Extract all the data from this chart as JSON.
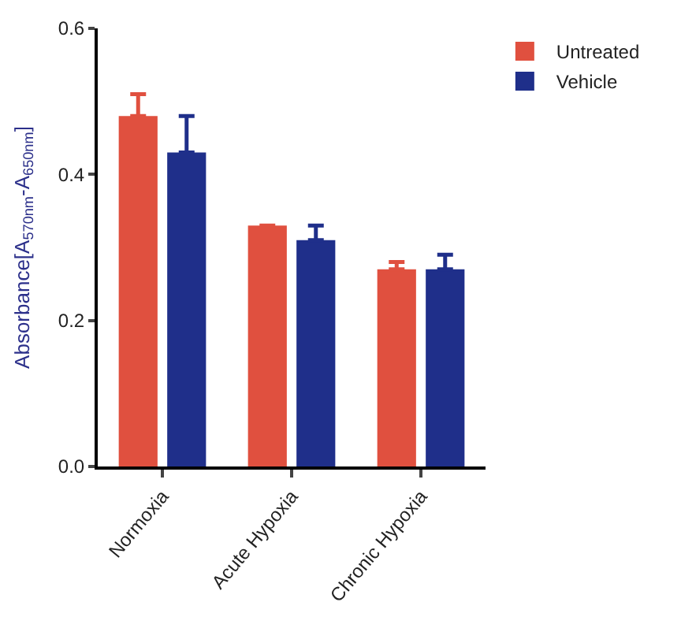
{
  "chart_data": {
    "type": "bar",
    "ylabel": "Absorbance[A$_{570nm}$-A$_{650nm}$]",
    "categories": [
      "Normoxia",
      "Acute Hypoxia",
      "Chronic Hypoxia"
    ],
    "series": [
      {
        "name": "Untreated",
        "color": "#e0503f",
        "values": [
          0.48,
          0.33,
          0.27
        ],
        "errors": [
          [
            0.48,
            0.51
          ],
          [
            0.33,
            0.33
          ],
          [
            0.27,
            0.28
          ]
        ]
      },
      {
        "name": "Vehicle",
        "color": "#1f2f8a",
        "values": [
          0.43,
          0.31,
          0.27
        ],
        "errors": [
          [
            0.43,
            0.48
          ],
          [
            0.31,
            0.33
          ],
          [
            0.27,
            0.29
          ]
        ]
      }
    ],
    "ylim": [
      0,
      0.6
    ],
    "yticks": [
      {
        "value": 0,
        "label": "0.0"
      },
      0.2,
      0.4,
      0.6
    ],
    "legend": "top right"
  }
}
